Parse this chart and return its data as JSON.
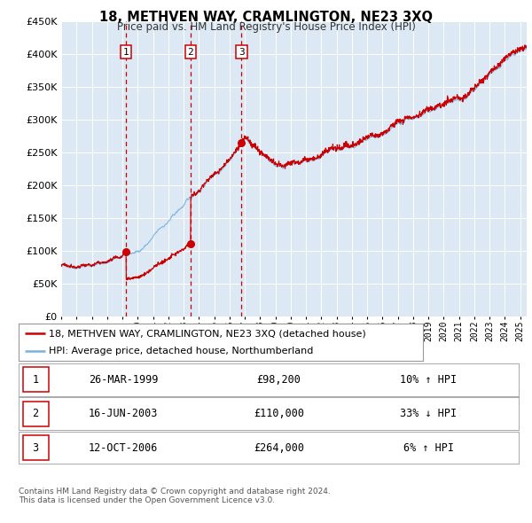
{
  "title": "18, METHVEN WAY, CRAMLINGTON, NE23 3XQ",
  "subtitle": "Price paid vs. HM Land Registry's House Price Index (HPI)",
  "red_label": "18, METHVEN WAY, CRAMLINGTON, NE23 3XQ (detached house)",
  "blue_label": "HPI: Average price, detached house, Northumberland",
  "footer1": "Contains HM Land Registry data © Crown copyright and database right 2024.",
  "footer2": "This data is licensed under the Open Government Licence v3.0.",
  "sales": [
    {
      "num": 1,
      "date": "26-MAR-1999",
      "price_str": "£98,200",
      "hpi_diff": "10% ↑ HPI",
      "year": 1999.23,
      "price": 98200
    },
    {
      "num": 2,
      "date": "16-JUN-2003",
      "price_str": "£110,000",
      "hpi_diff": "33% ↓ HPI",
      "year": 2003.45,
      "price": 110000
    },
    {
      "num": 3,
      "date": "12-OCT-2006",
      "price_str": "£264,000",
      "hpi_diff": "6% ↑ HPI",
      "year": 2006.79,
      "price": 264000
    }
  ],
  "ylim": [
    0,
    450000
  ],
  "xlim_start": 1995.0,
  "xlim_end": 2025.42,
  "bg_color": "#dce9f5",
  "grid_color": "#ffffff",
  "red_color": "#cc0000",
  "blue_color": "#7ab3e0",
  "dashed_color": "#cc0000"
}
